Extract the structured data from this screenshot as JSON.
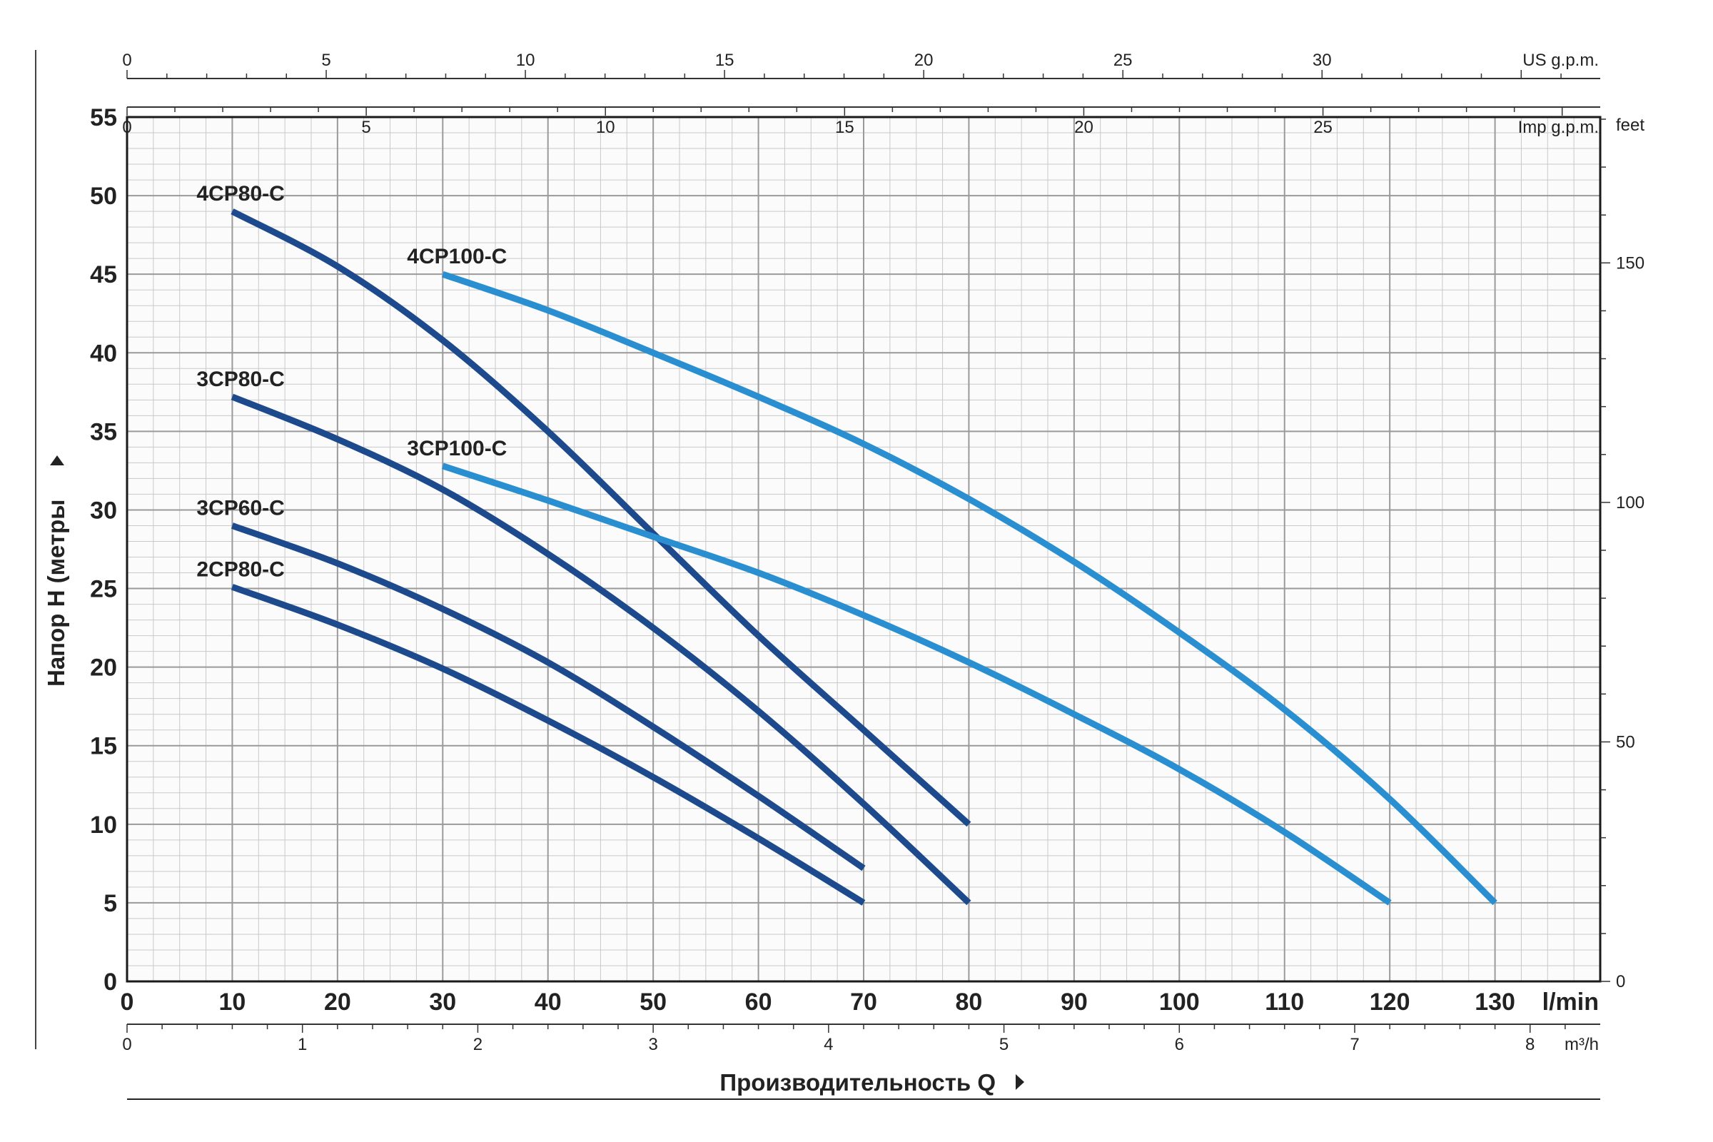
{
  "chart_data": {
    "type": "line",
    "ylabel": "Напор H (метры",
    "xlabel": "Производительность Q",
    "x_unit": "l/min",
    "xlim": [
      0,
      140
    ],
    "ylim": [
      0,
      55
    ],
    "grid": true,
    "y_ticks": [
      0,
      5,
      10,
      15,
      20,
      25,
      30,
      35,
      40,
      45,
      50,
      55
    ],
    "x_ticks": [
      0,
      10,
      20,
      30,
      40,
      50,
      60,
      70,
      80,
      90,
      100,
      110,
      120,
      130
    ],
    "secondary_axes": {
      "feet": {
        "label": "feet",
        "ticks": [
          0,
          50,
          100,
          150
        ]
      },
      "us_gpm": {
        "label": "US g.p.m.",
        "ticks": [
          0,
          5,
          10,
          15,
          20,
          25,
          30
        ]
      },
      "imp_gpm": {
        "label": "Imp g.p.m.",
        "ticks": [
          0,
          5,
          10,
          15,
          20,
          25
        ]
      },
      "m3h": {
        "label": "m³/h",
        "ticks": [
          0,
          1,
          2,
          3,
          4,
          5,
          6,
          7,
          8
        ]
      }
    },
    "series": [
      {
        "name": "4CP80-C",
        "color": "#1d4a8c",
        "x": [
          10,
          20,
          30,
          40,
          50,
          60,
          70,
          80
        ],
        "y": [
          49,
          45.5,
          40.8,
          35,
          28.5,
          22,
          16,
          10
        ]
      },
      {
        "name": "4CP100-C",
        "color": "#2a8fd0",
        "x": [
          30,
          40,
          50,
          60,
          70,
          80,
          90,
          100,
          110,
          120,
          130
        ],
        "y": [
          45,
          42.7,
          40,
          37.2,
          34.2,
          30.7,
          26.7,
          22.2,
          17.3,
          11.6,
          5
        ]
      },
      {
        "name": "3CP80-C",
        "color": "#1d4a8c",
        "x": [
          10,
          20,
          30,
          40,
          50,
          60,
          70,
          80
        ],
        "y": [
          37.2,
          34.5,
          31.3,
          27.2,
          22.5,
          17.2,
          11.3,
          5
        ]
      },
      {
        "name": "3CP100-C",
        "color": "#2a8fd0",
        "x": [
          30,
          40,
          50,
          60,
          70,
          80,
          90,
          100,
          110,
          120
        ],
        "y": [
          32.8,
          30.6,
          28.3,
          26,
          23.3,
          20.3,
          17,
          13.5,
          9.5,
          5
        ]
      },
      {
        "name": "3CP60-C",
        "color": "#1d4a8c",
        "x": [
          10,
          20,
          30,
          40,
          50,
          60,
          70
        ],
        "y": [
          29,
          26.6,
          23.7,
          20.3,
          16.2,
          11.8,
          7.2
        ]
      },
      {
        "name": "2CP80-C",
        "color": "#1d4a8c",
        "x": [
          10,
          20,
          30,
          40,
          50,
          60,
          70
        ],
        "y": [
          25.1,
          22.7,
          19.9,
          16.6,
          13,
          9.1,
          5
        ]
      }
    ]
  }
}
